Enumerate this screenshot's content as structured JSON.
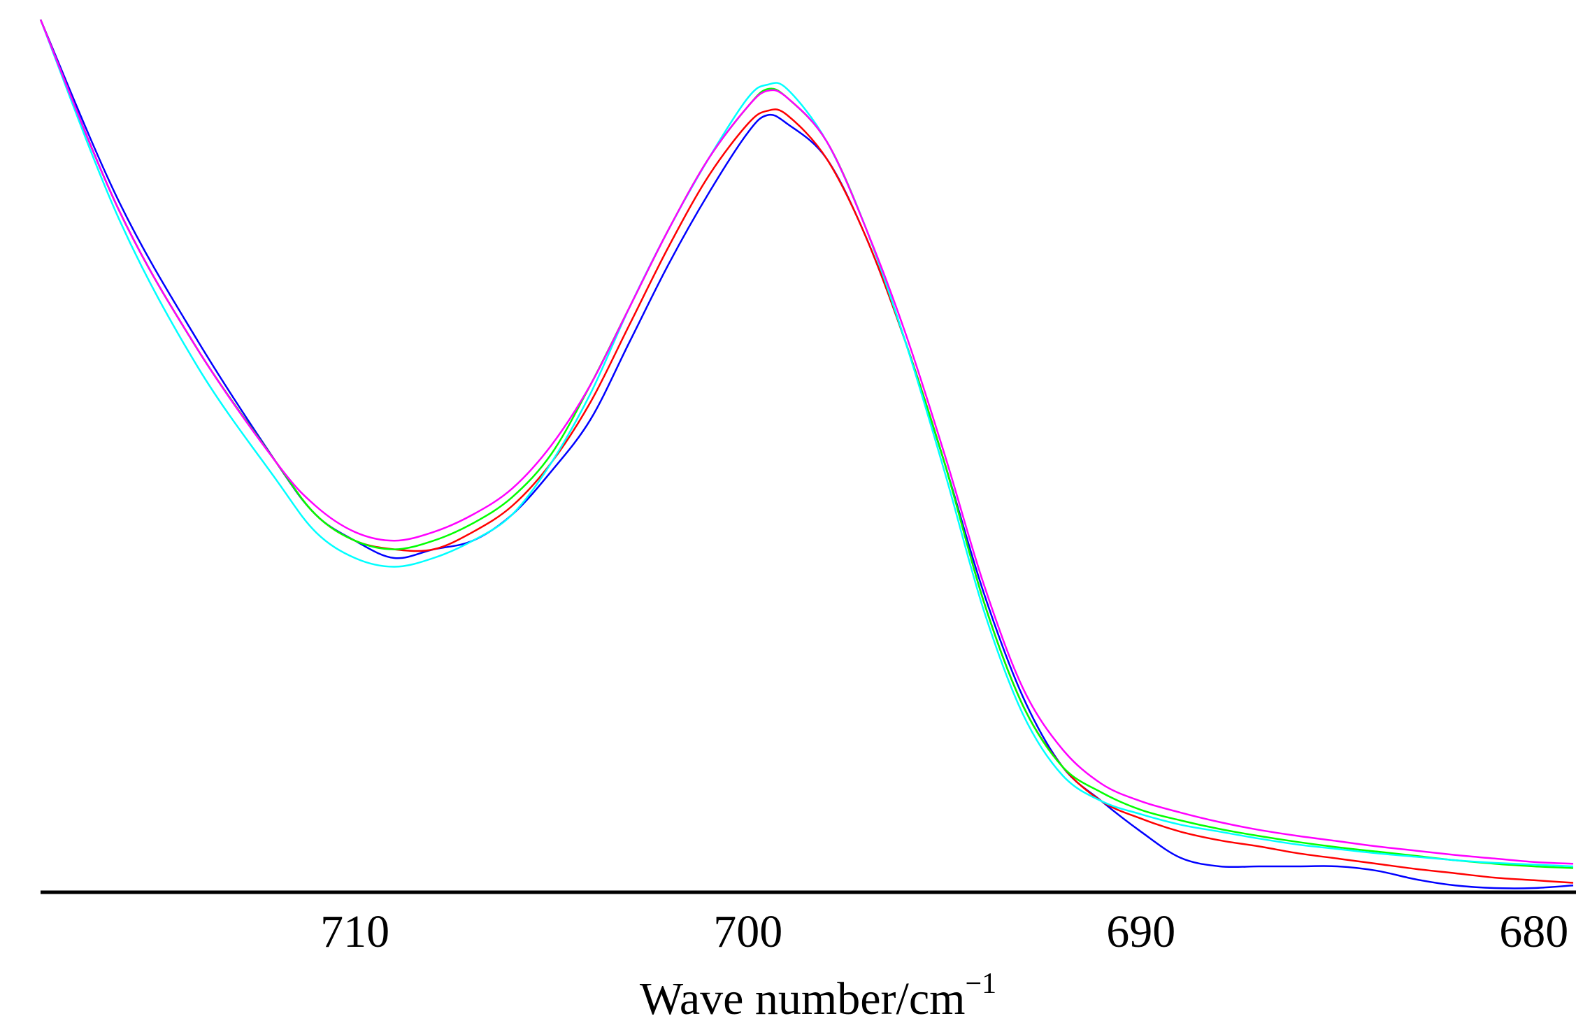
{
  "chart_data": {
    "type": "line",
    "xlabel": "Wave number/cm",
    "xlabel_superscript": "−1",
    "ylabel": "",
    "x_reversed": true,
    "xlim": [
      718,
      679
    ],
    "ylim": [
      0,
      1
    ],
    "x_ticks": [
      710,
      700,
      690,
      680
    ],
    "x_tick_labels": [
      "710",
      "700",
      "690",
      "680"
    ],
    "grid": false,
    "y_axis_shown": false,
    "series": [
      {
        "color": "#0000ff",
        "x": [
          718,
          716,
          714,
          712,
          711,
          710,
          709,
          708,
          707,
          706,
          705,
          704,
          703,
          702,
          701,
          700,
          699.5,
          699,
          698,
          697,
          696,
          695,
          694,
          693,
          692,
          691,
          690,
          689,
          688,
          687,
          686,
          685,
          684,
          683,
          682,
          681,
          680,
          679
        ],
        "y": [
          1.0,
          0.79,
          0.63,
          0.49,
          0.43,
          0.4,
          0.38,
          0.39,
          0.4,
          0.43,
          0.48,
          0.54,
          0.63,
          0.72,
          0.8,
          0.87,
          0.89,
          0.88,
          0.84,
          0.75,
          0.63,
          0.49,
          0.34,
          0.22,
          0.14,
          0.1,
          0.065,
          0.035,
          0.025,
          0.025,
          0.025,
          0.025,
          0.02,
          0.01,
          0.003,
          0.0,
          0.0,
          0.003
        ]
      },
      {
        "color": "#ff0000",
        "x": [
          718,
          716,
          714,
          712,
          711,
          710,
          709,
          708,
          707,
          706,
          705,
          704,
          703,
          702,
          701,
          700,
          699.5,
          699,
          698,
          697,
          696,
          695,
          694,
          693,
          692,
          691,
          690,
          689,
          688,
          687,
          686,
          685,
          684,
          683,
          682,
          681,
          680,
          679
        ],
        "y": [
          1.0,
          0.78,
          0.62,
          0.49,
          0.43,
          0.4,
          0.39,
          0.39,
          0.41,
          0.44,
          0.49,
          0.56,
          0.65,
          0.74,
          0.82,
          0.88,
          0.895,
          0.89,
          0.84,
          0.75,
          0.63,
          0.49,
          0.33,
          0.21,
          0.14,
          0.1,
          0.08,
          0.065,
          0.055,
          0.048,
          0.04,
          0.034,
          0.028,
          0.022,
          0.017,
          0.012,
          0.009,
          0.006
        ]
      },
      {
        "color": "#00ff00",
        "x": [
          718,
          716,
          714,
          712,
          711,
          710,
          709,
          708,
          707,
          706,
          705,
          704,
          703,
          702,
          701,
          700,
          699.5,
          699,
          698,
          697,
          696,
          695,
          694,
          693,
          692,
          691,
          690,
          689,
          688,
          687,
          686,
          685,
          684,
          683,
          682,
          681,
          680,
          679
        ],
        "y": [
          1.0,
          0.78,
          0.62,
          0.49,
          0.43,
          0.4,
          0.39,
          0.4,
          0.42,
          0.45,
          0.5,
          0.58,
          0.67,
          0.76,
          0.84,
          0.9,
          0.92,
          0.91,
          0.86,
          0.76,
          0.63,
          0.49,
          0.33,
          0.21,
          0.14,
          0.11,
          0.09,
          0.078,
          0.068,
          0.06,
          0.053,
          0.047,
          0.042,
          0.037,
          0.032,
          0.028,
          0.025,
          0.023
        ]
      },
      {
        "color": "#00ffff",
        "x": [
          718,
          716,
          714,
          712,
          711,
          710,
          709,
          708,
          707,
          706,
          705,
          704,
          703,
          702,
          701,
          700,
          699.5,
          699,
          698,
          697,
          696,
          695,
          694,
          693,
          692,
          691,
          690,
          689,
          688,
          687,
          686,
          685,
          684,
          683,
          682,
          681,
          680,
          679
        ],
        "y": [
          1.0,
          0.77,
          0.6,
          0.47,
          0.41,
          0.38,
          0.37,
          0.38,
          0.4,
          0.43,
          0.49,
          0.57,
          0.67,
          0.76,
          0.84,
          0.91,
          0.925,
          0.92,
          0.86,
          0.76,
          0.63,
          0.48,
          0.32,
          0.2,
          0.13,
          0.1,
          0.085,
          0.073,
          0.065,
          0.057,
          0.05,
          0.045,
          0.04,
          0.036,
          0.032,
          0.029,
          0.027,
          0.025
        ]
      },
      {
        "color": "#ff00ff",
        "x": [
          718,
          716,
          714,
          712,
          711,
          710,
          709,
          708,
          707,
          706,
          705,
          704,
          703,
          702,
          701,
          700,
          699.5,
          699,
          698,
          697,
          696,
          695,
          694,
          693,
          692,
          691,
          690,
          689,
          688,
          687,
          686,
          685,
          684,
          683,
          682,
          681,
          680,
          679
        ],
        "y": [
          1.0,
          0.78,
          0.62,
          0.49,
          0.44,
          0.41,
          0.4,
          0.41,
          0.43,
          0.46,
          0.51,
          0.58,
          0.67,
          0.76,
          0.84,
          0.9,
          0.918,
          0.91,
          0.86,
          0.76,
          0.64,
          0.5,
          0.35,
          0.23,
          0.16,
          0.12,
          0.1,
          0.087,
          0.076,
          0.067,
          0.06,
          0.054,
          0.048,
          0.043,
          0.038,
          0.034,
          0.03,
          0.028
        ]
      }
    ]
  }
}
